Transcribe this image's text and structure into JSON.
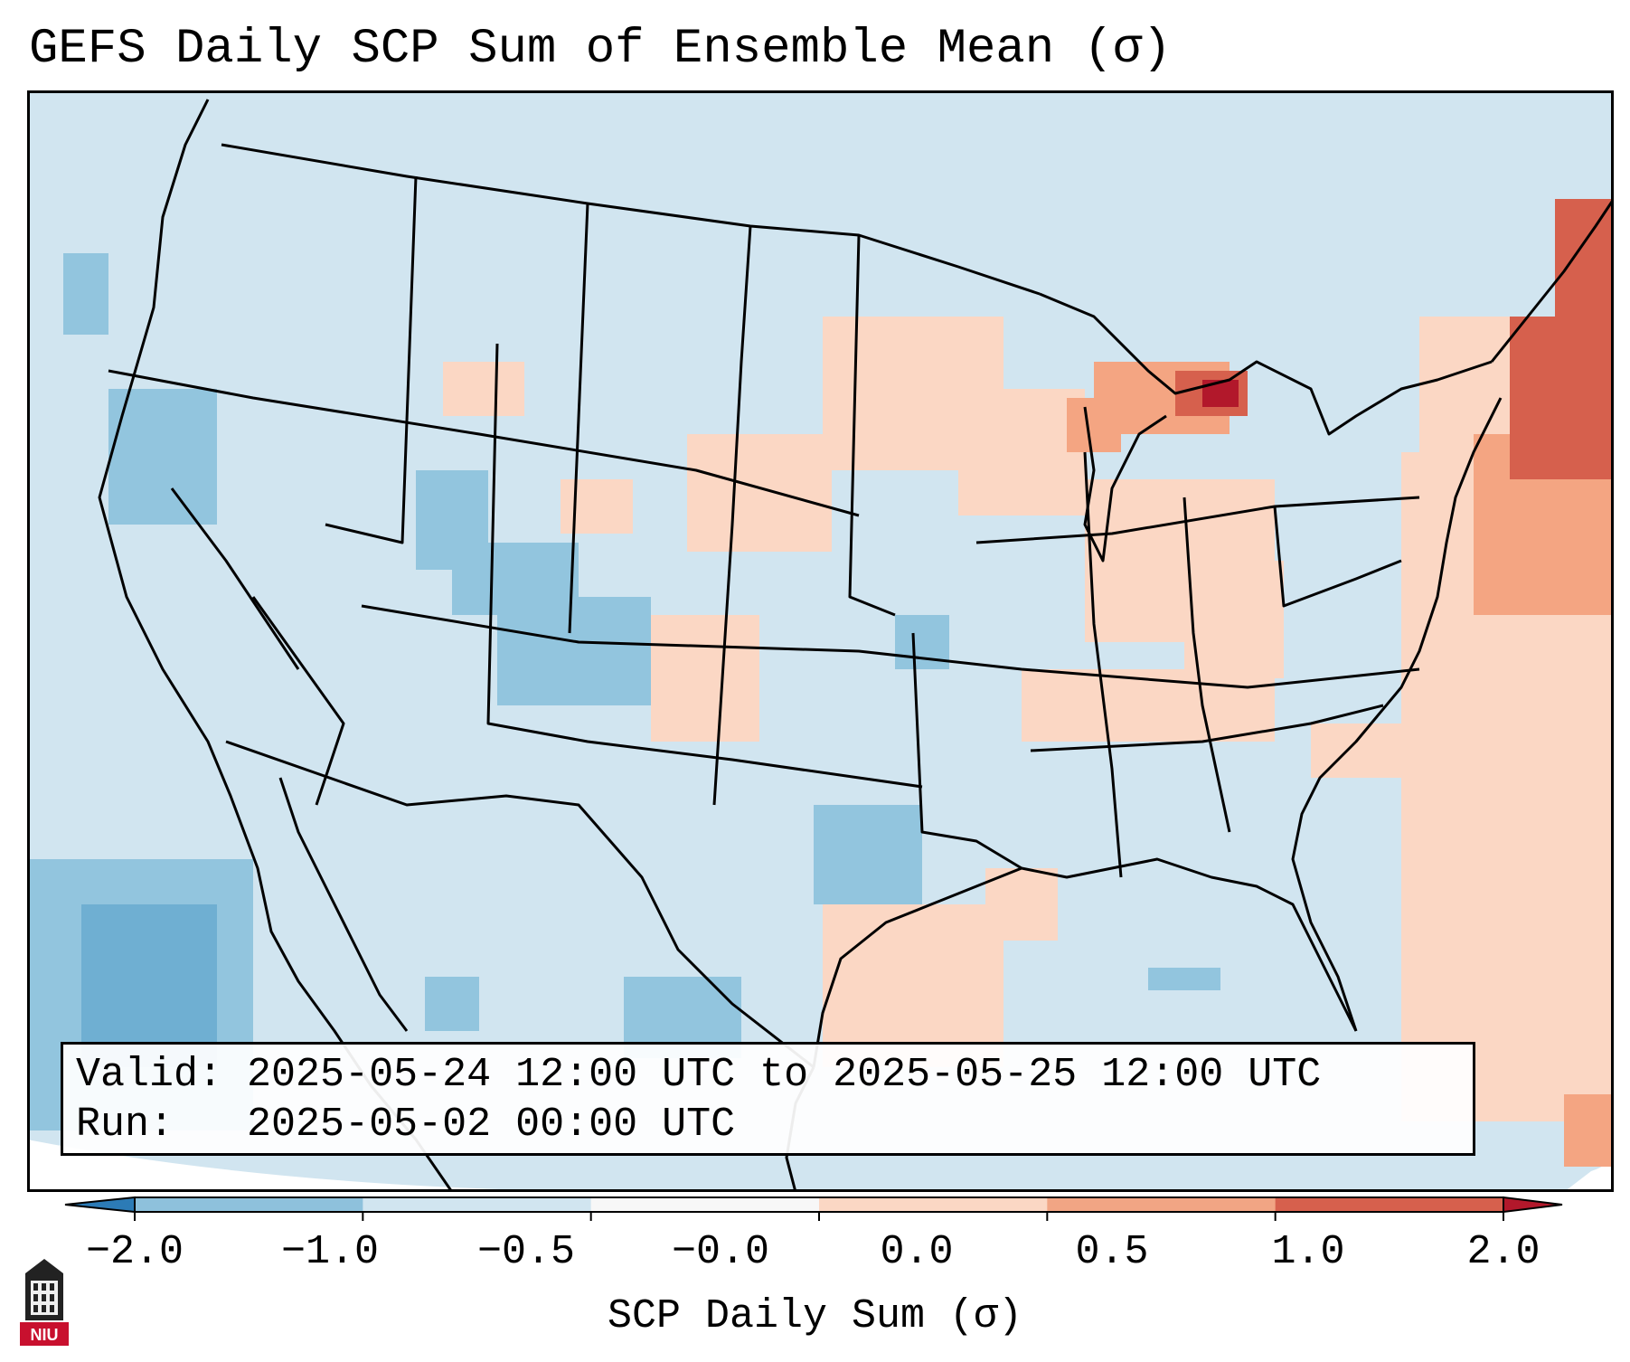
{
  "title": "GEFS Daily SCP Sum of Ensemble Mean (σ)",
  "info": {
    "valid_label": "Valid:",
    "valid_value": "2025-05-24 12:00 UTC to 2025-05-25 12:00 UTC",
    "run_label": "Run:",
    "run_value": "2025-05-02 00:00 UTC"
  },
  "colorbar": {
    "label": "SCP Daily Sum (σ)",
    "ticks": [
      "−2.0",
      "−1.0",
      "−0.5",
      "−0.0",
      "0.0",
      "0.5",
      "1.0",
      "2.0"
    ],
    "colors": [
      "#2c7bb6",
      "#8ec1dc",
      "#d1e5f0",
      "#f7f7f7",
      "#fbd7c4",
      "#f1a584",
      "#d6604d",
      "#b2182b"
    ],
    "extend": "both"
  },
  "map_colors": {
    "ocean_land_base": "#d1e5f0",
    "light_blue": "#92c5de",
    "mid_blue": "#6fafd2",
    "light_red": "#fbd7c4",
    "mid_red": "#f4a582",
    "red": "#d6604d",
    "dark_red": "#b2182b",
    "boundaries": "#000000"
  },
  "logo": {
    "text": "NIU",
    "icon": "niu-building-logo-icon",
    "color": "#c8102e"
  }
}
